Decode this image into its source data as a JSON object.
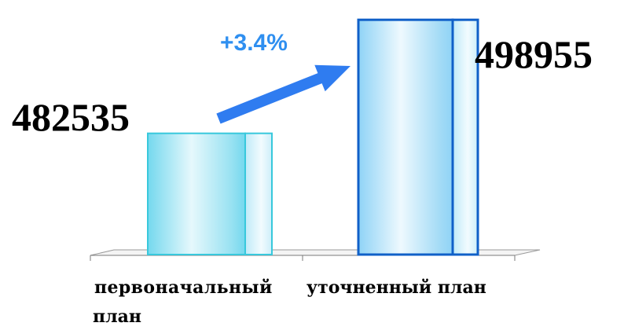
{
  "chart_data": {
    "type": "bar",
    "categories": [
      "первоначальный план",
      "уточненный план"
    ],
    "values": [
      482535,
      498955
    ],
    "value_labels": [
      "482535",
      "498955"
    ],
    "growth_label": "+3.4%",
    "ylim": [
      465000,
      500000
    ],
    "grid": false,
    "legend": "none",
    "colors": {
      "bar_light": "#e6f8fc",
      "bar_mid": "#74d8ee",
      "bar_edge_1": "#38c8dc",
      "bar_edge_2": "#1060c8",
      "side_face": "#cfeffa",
      "arrow": "#2f7cf0",
      "growth_text": "#2f8ff0",
      "axis": "#7a7a7a"
    }
  },
  "category_labels": {
    "first_line1": "первоначальный",
    "first_line2": "план",
    "second": "уточненный план"
  }
}
